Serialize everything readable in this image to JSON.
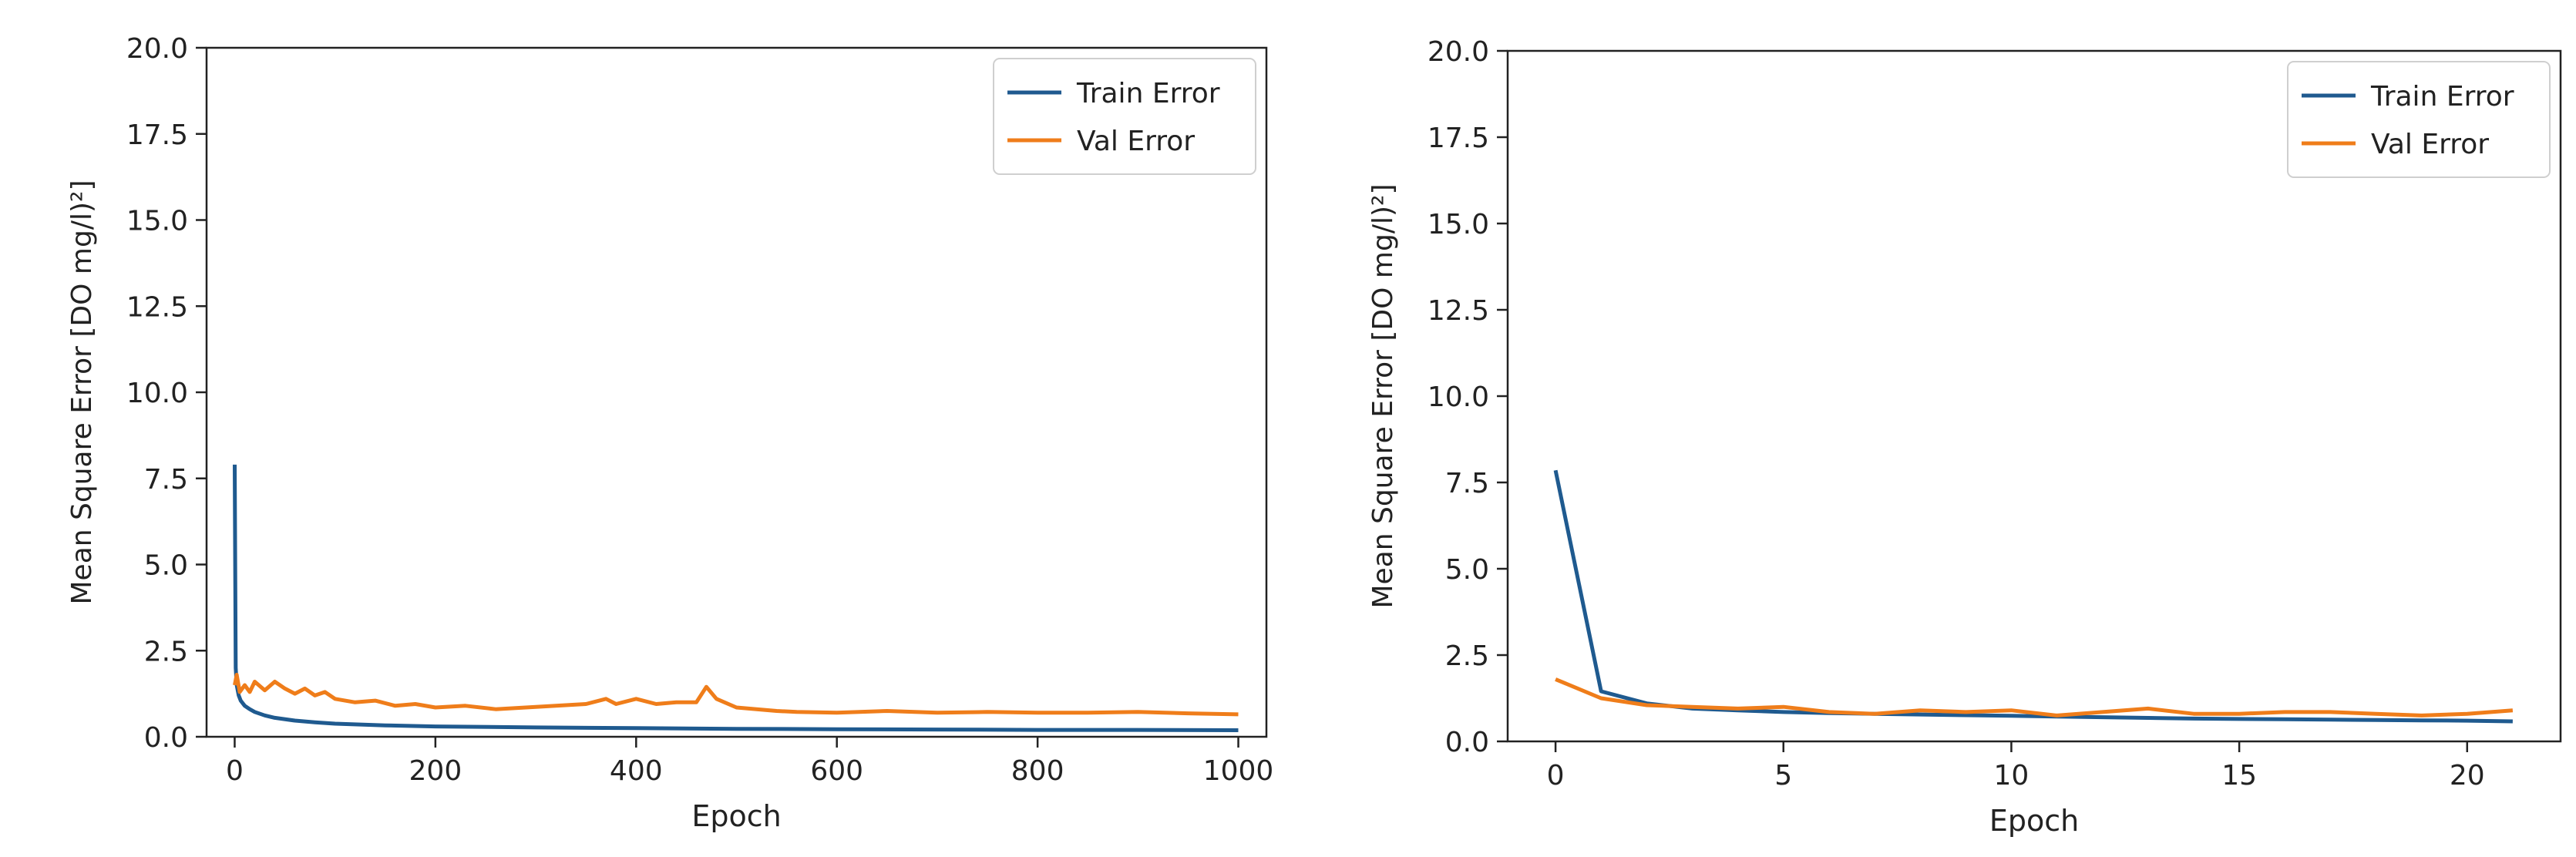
{
  "chart_data": [
    {
      "type": "line",
      "xlabel": "Epoch",
      "ylabel": "Mean Square Error [DO  mg/l)²]",
      "xlim": [
        -28,
        1028
      ],
      "ylim": [
        0,
        20
      ],
      "xticks": [
        0,
        200,
        400,
        600,
        800,
        1000
      ],
      "xtick_labels": [
        "0",
        "200",
        "400",
        "600",
        "800",
        "1000"
      ],
      "yticks": [
        0,
        2.5,
        5,
        7.5,
        10,
        12.5,
        15,
        17.5,
        20
      ],
      "ytick_labels": [
        "0.0",
        "2.5",
        "5.0",
        "7.5",
        "10.0",
        "12.5",
        "15.0",
        "17.5",
        "20.0"
      ],
      "grid": false,
      "legend_position": "top-right",
      "series": [
        {
          "name": "Train Error",
          "color": "#1f5a8f",
          "x": [
            0,
            1,
            2,
            4,
            6,
            10,
            15,
            20,
            30,
            40,
            60,
            80,
            100,
            150,
            200,
            300,
            400,
            500,
            600,
            700,
            800,
            900,
            1000
          ],
          "y": [
            7.9,
            2.0,
            1.5,
            1.2,
            1.05,
            0.9,
            0.8,
            0.72,
            0.62,
            0.55,
            0.47,
            0.42,
            0.38,
            0.33,
            0.3,
            0.27,
            0.25,
            0.23,
            0.22,
            0.21,
            0.2,
            0.2,
            0.19
          ]
        },
        {
          "name": "Val Error",
          "color": "#ef7d1a",
          "x": [
            0,
            2,
            5,
            10,
            15,
            20,
            30,
            40,
            50,
            60,
            70,
            80,
            90,
            100,
            120,
            140,
            160,
            180,
            200,
            230,
            260,
            290,
            320,
            350,
            370,
            380,
            400,
            420,
            440,
            460,
            470,
            480,
            500,
            520,
            540,
            560,
            600,
            650,
            700,
            750,
            800,
            850,
            900,
            950,
            1000
          ],
          "y": [
            1.5,
            1.8,
            1.3,
            1.5,
            1.3,
            1.6,
            1.35,
            1.6,
            1.4,
            1.25,
            1.4,
            1.2,
            1.3,
            1.1,
            1.0,
            1.05,
            0.9,
            0.95,
            0.85,
            0.9,
            0.8,
            0.85,
            0.9,
            0.95,
            1.1,
            0.95,
            1.1,
            0.95,
            1.0,
            1.0,
            1.45,
            1.1,
            0.85,
            0.8,
            0.75,
            0.72,
            0.7,
            0.75,
            0.7,
            0.72,
            0.7,
            0.7,
            0.72,
            0.68,
            0.65
          ]
        }
      ]
    },
    {
      "type": "line",
      "xlabel": "Epoch",
      "ylabel": "Mean Square Error [DO  mg/l)²]",
      "xlim": [
        -1.05,
        22.05
      ],
      "ylim": [
        0,
        20
      ],
      "xticks": [
        0,
        5,
        10,
        15,
        20
      ],
      "xtick_labels": [
        "0",
        "5",
        "10",
        "15",
        "20"
      ],
      "yticks": [
        0,
        2.5,
        5,
        7.5,
        10,
        12.5,
        15,
        17.5,
        20
      ],
      "ytick_labels": [
        "0.0",
        "2.5",
        "5.0",
        "7.5",
        "10.0",
        "12.5",
        "15.0",
        "17.5",
        "20.0"
      ],
      "grid": false,
      "legend_position": "top-right",
      "series": [
        {
          "name": "Train Error",
          "color": "#1f5a8f",
          "x": [
            0,
            1,
            2,
            3,
            4,
            5,
            6,
            7,
            8,
            9,
            10,
            11,
            12,
            13,
            14,
            15,
            16,
            17,
            18,
            19,
            20,
            21
          ],
          "y": [
            7.85,
            1.45,
            1.1,
            0.95,
            0.9,
            0.85,
            0.82,
            0.8,
            0.78,
            0.76,
            0.74,
            0.72,
            0.7,
            0.68,
            0.66,
            0.65,
            0.64,
            0.63,
            0.62,
            0.61,
            0.6,
            0.58
          ]
        },
        {
          "name": "Val Error",
          "color": "#ef7d1a",
          "x": [
            0,
            1,
            2,
            3,
            4,
            5,
            6,
            7,
            8,
            9,
            10,
            11,
            12,
            13,
            14,
            15,
            16,
            17,
            18,
            19,
            20,
            21
          ],
          "y": [
            1.8,
            1.25,
            1.05,
            1.0,
            0.95,
            1.0,
            0.85,
            0.8,
            0.9,
            0.85,
            0.9,
            0.75,
            0.85,
            0.95,
            0.8,
            0.8,
            0.85,
            0.85,
            0.8,
            0.75,
            0.8,
            0.9
          ]
        }
      ]
    }
  ]
}
